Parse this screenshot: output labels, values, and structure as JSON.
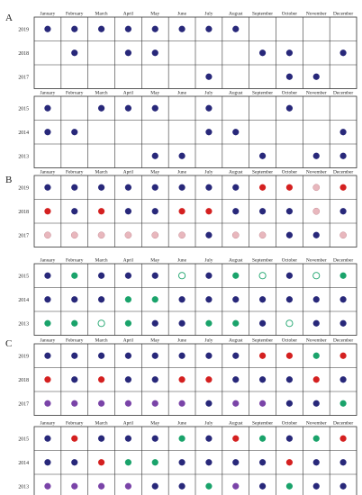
{
  "chart_data": {
    "type": "table",
    "months": [
      "January",
      "February",
      "March",
      "April",
      "May",
      "June",
      "July",
      "August",
      "September",
      "October",
      "November",
      "December"
    ],
    "colors": {
      "navy": "#28287a",
      "red": "#d42020",
      "pink": "#e8b7bd",
      "green": "#1aa36b",
      "purple": "#7a44a8"
    },
    "panels": [
      {
        "label": "A",
        "tables": [
          {
            "rows": [
              {
                "year": "2019",
                "cells": [
                  "navy",
                  "navy",
                  "navy",
                  "navy",
                  "navy",
                  "navy",
                  "navy",
                  "navy",
                  null,
                  null,
                  null,
                  null
                ]
              },
              {
                "year": "2018",
                "cells": [
                  null,
                  "navy",
                  null,
                  "navy",
                  "navy",
                  null,
                  null,
                  null,
                  "navy",
                  "navy",
                  null,
                  "navy"
                ]
              },
              {
                "year": "2017",
                "cells": [
                  null,
                  null,
                  null,
                  null,
                  null,
                  null,
                  "navy",
                  null,
                  null,
                  "navy",
                  "navy",
                  null
                ]
              }
            ]
          },
          {
            "rows": [
              {
                "year": "2015",
                "cells": [
                  "navy",
                  null,
                  "navy",
                  "navy",
                  "navy",
                  null,
                  "navy",
                  null,
                  null,
                  "navy",
                  null,
                  null
                ]
              },
              {
                "year": "2014",
                "cells": [
                  "navy",
                  "navy",
                  null,
                  null,
                  null,
                  null,
                  "navy",
                  "navy",
                  null,
                  null,
                  null,
                  "navy"
                ]
              },
              {
                "year": "2013",
                "cells": [
                  null,
                  null,
                  null,
                  null,
                  "navy",
                  "navy",
                  null,
                  null,
                  "navy",
                  null,
                  "navy",
                  "navy"
                ]
              }
            ]
          }
        ]
      },
      {
        "label": "B",
        "tables": [
          {
            "rows": [
              {
                "year": "2019",
                "cells": [
                  "navy",
                  "navy",
                  "navy",
                  "navy",
                  "navy",
                  "navy",
                  "navy",
                  "navy",
                  "red",
                  "red",
                  "pink-filled",
                  "red"
                ]
              },
              {
                "year": "2018",
                "cells": [
                  "red",
                  "navy",
                  "red",
                  "navy",
                  "navy",
                  "red",
                  "red",
                  "navy",
                  "navy",
                  "navy",
                  "pink-filled",
                  "navy"
                ]
              },
              {
                "year": "2017",
                "cells": [
                  "pink-filled",
                  "pink-filled",
                  "pink-filled",
                  "pink-filled",
                  "pink-filled",
                  "pink-filled",
                  "navy",
                  "pink-filled",
                  "pink-filled",
                  "navy",
                  "navy",
                  "pink-filled"
                ]
              }
            ]
          },
          {
            "rows": [
              {
                "year": "2015",
                "cells": [
                  "navy",
                  "green",
                  "navy",
                  "navy",
                  "navy",
                  "green-open",
                  "navy",
                  "green",
                  "green-open",
                  "navy",
                  "green-open",
                  "green"
                ]
              },
              {
                "year": "2014",
                "cells": [
                  "navy",
                  "navy",
                  "navy",
                  "green",
                  "green",
                  "navy",
                  "navy",
                  "navy",
                  "navy",
                  "navy",
                  "navy",
                  "navy"
                ]
              },
              {
                "year": "2013",
                "cells": [
                  "green",
                  "green",
                  "green-open",
                  "green",
                  "navy",
                  "navy",
                  "green",
                  "green",
                  "navy",
                  "green-open",
                  "navy",
                  "navy"
                ]
              }
            ]
          }
        ]
      },
      {
        "label": "C",
        "tables": [
          {
            "rows": [
              {
                "year": "2019",
                "cells": [
                  "navy",
                  "navy",
                  "navy",
                  "navy",
                  "navy",
                  "navy",
                  "navy",
                  "navy",
                  "red",
                  "red",
                  "green",
                  "red"
                ]
              },
              {
                "year": "2018",
                "cells": [
                  "red",
                  "navy",
                  "red",
                  "navy",
                  "navy",
                  "red",
                  "red",
                  "navy",
                  "navy",
                  "navy",
                  "red",
                  "navy"
                ]
              },
              {
                "year": "2017",
                "cells": [
                  "purple",
                  "purple",
                  "purple",
                  "purple",
                  "purple",
                  "purple",
                  "navy",
                  "purple",
                  "purple",
                  "navy",
                  "navy",
                  "green"
                ]
              }
            ]
          },
          {
            "rows": [
              {
                "year": "2015",
                "cells": [
                  "navy",
                  "red",
                  "navy",
                  "navy",
                  "navy",
                  "green",
                  "navy",
                  "red",
                  "green",
                  "navy",
                  "green",
                  "red"
                ]
              },
              {
                "year": "2014",
                "cells": [
                  "navy",
                  "navy",
                  "red",
                  "green",
                  "green",
                  "navy",
                  "navy",
                  "navy",
                  "navy",
                  "red",
                  "navy",
                  "navy"
                ]
              },
              {
                "year": "2013",
                "cells": [
                  "purple",
                  "purple",
                  "purple",
                  "purple",
                  "navy",
                  "navy",
                  "green",
                  "purple",
                  "navy",
                  "green",
                  "navy",
                  "navy"
                ]
              }
            ]
          }
        ]
      }
    ]
  }
}
